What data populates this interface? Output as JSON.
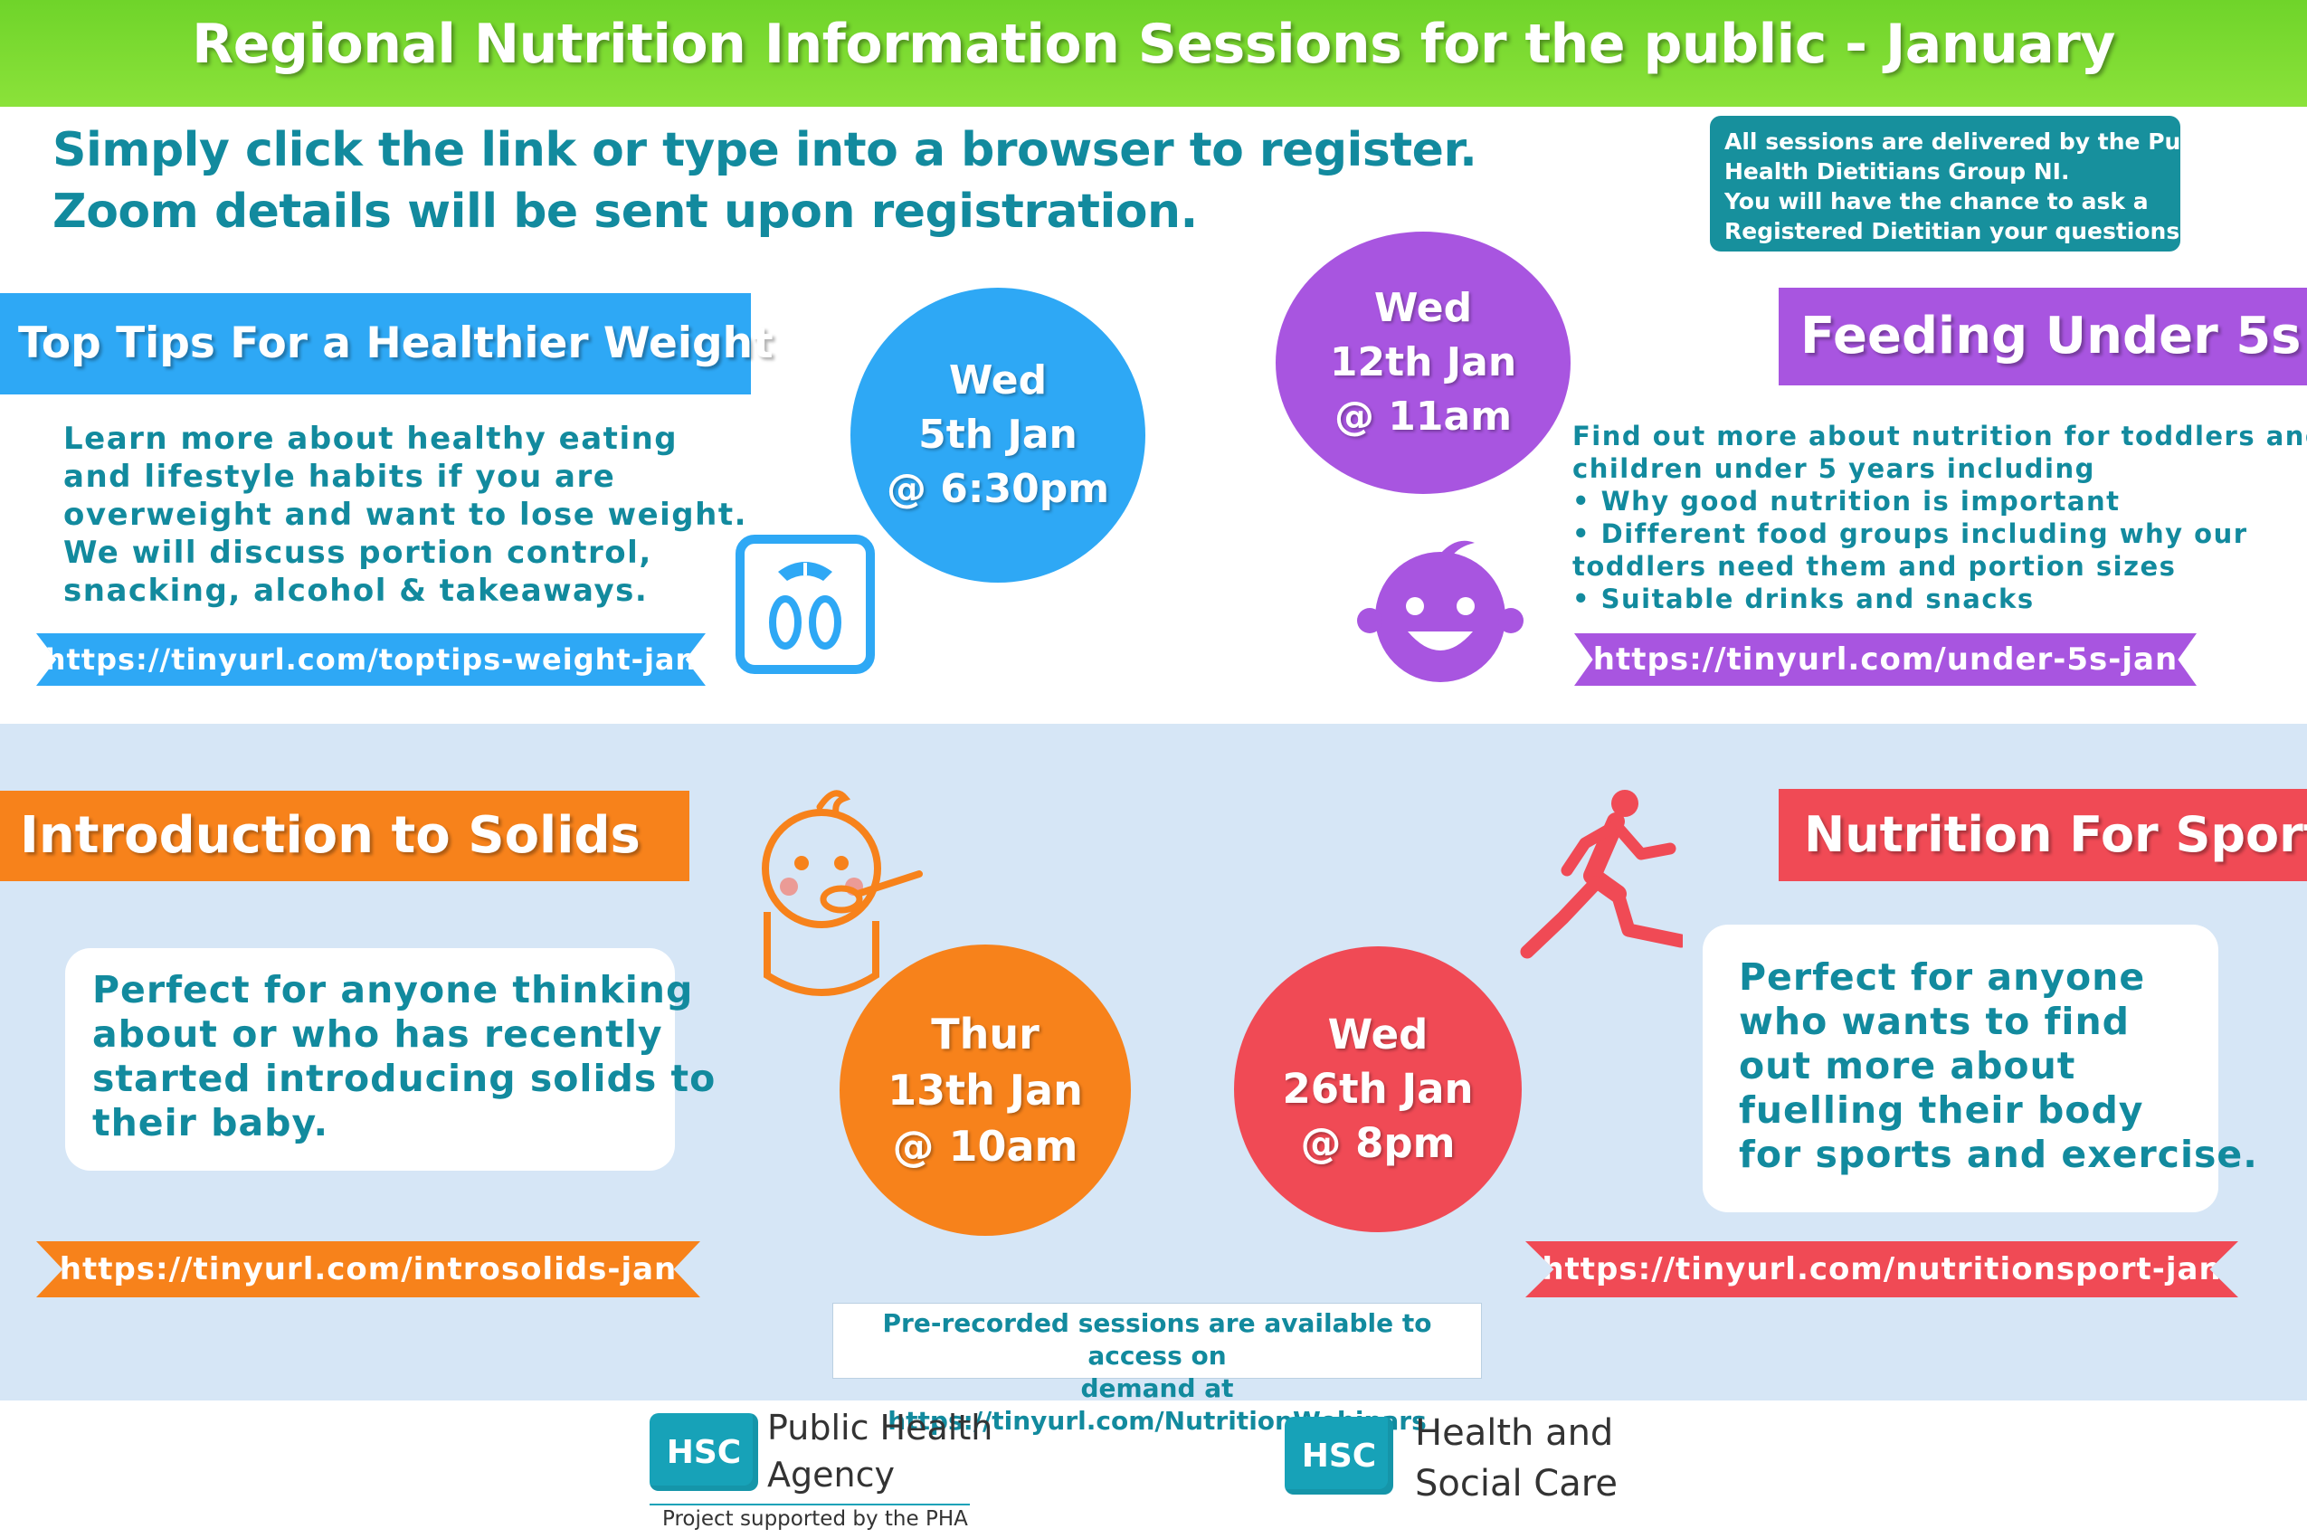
{
  "header": {
    "title": "Regional Nutrition Information Sessions for the public - January"
  },
  "intro": {
    "line1": "Simply click the link or type into a browser to register.",
    "line2": "Zoom details will be sent upon registration."
  },
  "info_box": {
    "lines": [
      "All sessions are delivered by the Public",
      "Health Dietitians Group NI.",
      "You will have the chance to ask a",
      "Registered Dietitian your questions."
    ]
  },
  "sessions": [
    {
      "title": "Top Tips For a Healthier Weight",
      "date": [
        "Wed",
        "5th Jan",
        "@ 6:30pm"
      ],
      "description": [
        "Learn more about healthy eating",
        "and lifestyle habits if you are",
        "overweight and want to lose weight.",
        "We will discuss portion control,",
        "snacking, alcohol & takeaways."
      ],
      "link": "https://tinyurl.com/toptips-weight-jan",
      "color": "#2ea8f5",
      "icon": "weighing-scale-icon"
    },
    {
      "title": "Feeding Under 5s",
      "date": [
        "Wed",
        "12th Jan",
        "@ 11am"
      ],
      "description": [
        "Find out more about nutrition for toddlers and",
        "children under 5 years including",
        "• Why good nutrition is important",
        "• Different food groups including why our",
        "toddlers need them and portion sizes",
        "• Suitable drinks and snacks"
      ],
      "link": "https://tinyurl.com/under-5s-jan",
      "color": "#a855e0",
      "icon": "baby-face-icon"
    },
    {
      "title": "Introduction to Solids",
      "date": [
        "Thur",
        "13th Jan",
        "@ 10am"
      ],
      "description": [
        "Perfect for anyone thinking",
        "about or who has recently",
        "started introducing solids to",
        "their baby."
      ],
      "link": "https://tinyurl.com/introsolids-jan",
      "color": "#f7821b",
      "icon": "baby-spoon-icon"
    },
    {
      "title": "Nutrition For Sport",
      "date": [
        "Wed",
        "26th Jan",
        "@ 8pm"
      ],
      "description": [
        "Perfect for anyone",
        "who wants to find",
        "out more about",
        "fuelling their body",
        "for sports and exercise."
      ],
      "link": "https://tinyurl.com/nutritionsport-jan",
      "color": "#f04a55",
      "icon": "runner-icon"
    }
  ],
  "prerecorded": {
    "line1": "Pre-recorded sessions are available to access on",
    "line2": "demand at https://tinyurl.com/NutritionWebinars"
  },
  "footer": {
    "pha": {
      "badge": "HSC",
      "name_line1": "Public Health",
      "name_line2": "Agency",
      "tagline": "Project supported by the PHA"
    },
    "hsc": {
      "badge": "HSC",
      "name_line1": "Health and",
      "name_line2": "Social Care"
    }
  }
}
